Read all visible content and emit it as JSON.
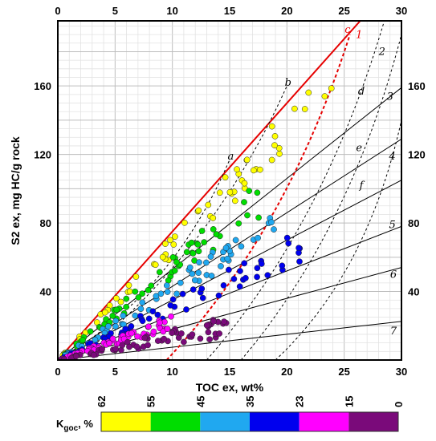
{
  "chart_data": {
    "type": "scatter",
    "xlabel": "TOC ex, wt%",
    "ylabel": "S2 ex, mg HC/g rock",
    "xlim": [
      0,
      30
    ],
    "ylim": [
      0,
      198
    ],
    "x_ticks": [
      "0",
      "5",
      "10",
      "15",
      "20",
      "25",
      "30"
    ],
    "y_ticks": [
      "40",
      "80",
      "120",
      "160"
    ],
    "grid": true,
    "lines": {
      "solid": [
        {
          "label": "1",
          "slope": 7.5
        },
        {
          "label": "2",
          "slope": 5.3
        },
        {
          "label": "3",
          "slope": 4.3
        },
        {
          "label": "4",
          "slope": 3.5
        },
        {
          "label": "5",
          "slope": 2.6
        },
        {
          "label": "6",
          "slope": 1.8
        },
        {
          "label": "7",
          "slope": 0.75
        }
      ],
      "dashed": [
        {
          "label": "a",
          "x0": 0,
          "y0": 0,
          "x1": 15,
          "y1": 117
        },
        {
          "label": "b",
          "x0": 1.5,
          "y0": 0,
          "x1": 20,
          "y1": 160
        },
        {
          "label": "c",
          "x0": 9.5,
          "y0": 0,
          "x1": 25.5,
          "y1": 190
        },
        {
          "label": "d",
          "x0": 13,
          "y0": 0,
          "x1": 28.5,
          "y1": 198
        },
        {
          "label": "e",
          "x0": 16,
          "y0": 0,
          "x1": 30,
          "y1": 190
        },
        {
          "label": "f",
          "x0": 19,
          "y0": 0,
          "x1": 30,
          "y1": 140
        }
      ]
    },
    "series": [
      {
        "color": "#ffff00",
        "range": [
          55,
          62
        ],
        "slope_min": 6.0,
        "slope_max": 7.3,
        "xmax": 24
      },
      {
        "color": "#00dd00",
        "range": [
          45,
          55
        ],
        "slope_min": 4.7,
        "slope_max": 6.0,
        "xmax": 18
      },
      {
        "color": "#20a8f0",
        "range": [
          35,
          45
        ],
        "slope_min": 3.6,
        "slope_max": 4.7,
        "xmax": 19
      },
      {
        "color": "#0000ee",
        "range": [
          23,
          35
        ],
        "slope_min": 2.6,
        "slope_max": 3.6,
        "xmax": 22
      },
      {
        "color": "#ff00ff",
        "range": [
          15,
          23
        ],
        "slope_min": 1.8,
        "slope_max": 2.6,
        "xmax": 10
      },
      {
        "color": "#7a0a7a",
        "range": [
          0,
          15
        ],
        "slope_min": 0.9,
        "slope_max": 1.8,
        "xmax": 15
      }
    ],
    "colorbar": {
      "title": "K",
      "subscript": "goc",
      "suffix": ", %",
      "ticks": [
        "62",
        "55",
        "45",
        "35",
        "23",
        "15",
        "0"
      ],
      "colors": [
        "#ffff00",
        "#00dd00",
        "#20a8f0",
        "#0000ee",
        "#ff00ff",
        "#7a0a7a"
      ]
    }
  }
}
